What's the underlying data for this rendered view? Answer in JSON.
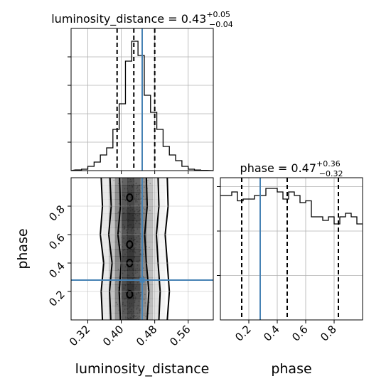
{
  "colors": {
    "truth": "#4682b4",
    "hist": "#000000",
    "grid": "#b0b0b0",
    "density": "#000000"
  },
  "chart_data": [
    {
      "type": "histogram",
      "panel": "luminosity_distance-marginal",
      "title": {
        "name": "luminosity_distance",
        "eq": " = ",
        "value": "0.43",
        "plus": "+0.05",
        "minus": "−0.04"
      },
      "xlim": [
        0.28,
        0.62
      ],
      "bin_edges": [
        0.29,
        0.305,
        0.32,
        0.335,
        0.35,
        0.365,
        0.38,
        0.395,
        0.41,
        0.425,
        0.44,
        0.455,
        0.47,
        0.485,
        0.5,
        0.515,
        0.53,
        0.545,
        0.56,
        0.575,
        0.59,
        0.605
      ],
      "counts": [
        0.5,
        1,
        3,
        6,
        11,
        16,
        29,
        47,
        77,
        91,
        81,
        53,
        41,
        29,
        17,
        11,
        7,
        3,
        1,
        0.4,
        0.2
      ],
      "quantiles": [
        0.39,
        0.43,
        0.48
      ],
      "truth": 0.45,
      "ylim": [
        0,
        100
      ],
      "yticks": [
        20,
        40,
        60,
        80
      ],
      "xticks": [
        0.32,
        0.4,
        0.48,
        0.56
      ]
    },
    {
      "type": "histogram",
      "panel": "phase-marginal",
      "title": {
        "name": "phase",
        "eq": " = ",
        "value": "0.47",
        "plus": "+0.36",
        "minus": "−0.32"
      },
      "xlim": [
        0.0,
        1.0
      ],
      "bin_edges": [
        0.0,
        0.04,
        0.08,
        0.12,
        0.16,
        0.2,
        0.24,
        0.28,
        0.32,
        0.36,
        0.4,
        0.44,
        0.48,
        0.52,
        0.56,
        0.6,
        0.64,
        0.68,
        0.72,
        0.76,
        0.8,
        0.84,
        0.88,
        0.92,
        0.96,
        1.0
      ],
      "counts": [
        70,
        70,
        72,
        67,
        68,
        68,
        70,
        70,
        74,
        74,
        72,
        68,
        72,
        70,
        66,
        67,
        58,
        58,
        56,
        58,
        54,
        58,
        60,
        58,
        54
      ],
      "quantiles": [
        0.15,
        0.47,
        0.83
      ],
      "truth": 0.28,
      "ylim": [
        0,
        80
      ],
      "yticks": [
        25,
        50,
        75
      ],
      "xticks": [
        0.2,
        0.4,
        0.6,
        0.8
      ]
    },
    {
      "type": "heatmap",
      "panel": "2d-density",
      "xlim": [
        0.28,
        0.62
      ],
      "ylim": [
        0.0,
        1.0
      ],
      "xticks": [
        0.32,
        0.4,
        0.48,
        0.56
      ],
      "yticks": [
        0.2,
        0.4,
        0.6,
        0.8
      ],
      "x_bin_edges": [
        0.34,
        0.355,
        0.37,
        0.385,
        0.4,
        0.415,
        0.43,
        0.445,
        0.46,
        0.475,
        0.49,
        0.505,
        0.52
      ],
      "y_bin_edges": [
        0.0,
        0.05,
        0.1,
        0.15,
        0.2,
        0.25,
        0.3,
        0.35,
        0.4,
        0.45,
        0.5,
        0.55,
        0.6,
        0.65,
        0.7,
        0.75,
        0.8,
        0.85,
        0.9,
        0.95,
        1.0
      ],
      "density_x_profile": [
        0.04,
        0.12,
        0.3,
        0.6,
        0.9,
        1.0,
        0.88,
        0.6,
        0.35,
        0.16,
        0.06,
        0.02
      ],
      "density_y_profile": [
        0.82,
        0.85,
        0.88,
        0.92,
        0.95,
        0.9,
        0.86,
        0.9,
        0.95,
        0.92,
        0.88,
        0.9,
        0.86,
        0.92,
        0.95,
        0.9,
        0.85,
        0.88,
        0.86,
        0.8
      ],
      "truth": {
        "x": 0.45,
        "y": 0.28
      },
      "xlabel": "luminosity_distance",
      "ylabel": "phase",
      "contours": [
        {
          "left": [
            [
              0.355,
              0.0
            ],
            [
              0.352,
              0.2
            ],
            [
              0.358,
              0.4
            ],
            [
              0.35,
              0.6
            ],
            [
              0.355,
              0.8
            ],
            [
              0.352,
              1.0
            ]
          ],
          "right": [
            [
              0.51,
              0.0
            ],
            [
              0.515,
              0.2
            ],
            [
              0.51,
              0.4
            ],
            [
              0.505,
              0.6
            ],
            [
              0.512,
              0.8
            ],
            [
              0.51,
              1.0
            ]
          ]
        },
        {
          "left": [
            [
              0.375,
              0.0
            ],
            [
              0.372,
              0.2
            ],
            [
              0.378,
              0.4
            ],
            [
              0.37,
              0.6
            ],
            [
              0.376,
              0.8
            ],
            [
              0.373,
              1.0
            ]
          ],
          "right": [
            [
              0.49,
              0.0
            ],
            [
              0.493,
              0.2
            ],
            [
              0.488,
              0.4
            ],
            [
              0.484,
              0.6
            ],
            [
              0.49,
              0.8
            ],
            [
              0.488,
              1.0
            ]
          ]
        },
        {
          "left": [
            [
              0.398,
              0.0
            ],
            [
              0.395,
              0.2
            ],
            [
              0.4,
              0.4
            ],
            [
              0.392,
              0.6
            ],
            [
              0.398,
              0.8
            ],
            [
              0.396,
              1.0
            ]
          ],
          "right": [
            [
              0.462,
              0.0
            ],
            [
              0.466,
              0.2
            ],
            [
              0.46,
              0.4
            ],
            [
              0.456,
              0.6
            ],
            [
              0.462,
              0.8
            ],
            [
              0.46,
              1.0
            ]
          ]
        }
      ]
    }
  ],
  "labels": {
    "x_left": "luminosity_distance",
    "x_right": "phase",
    "y_left": "phase"
  }
}
